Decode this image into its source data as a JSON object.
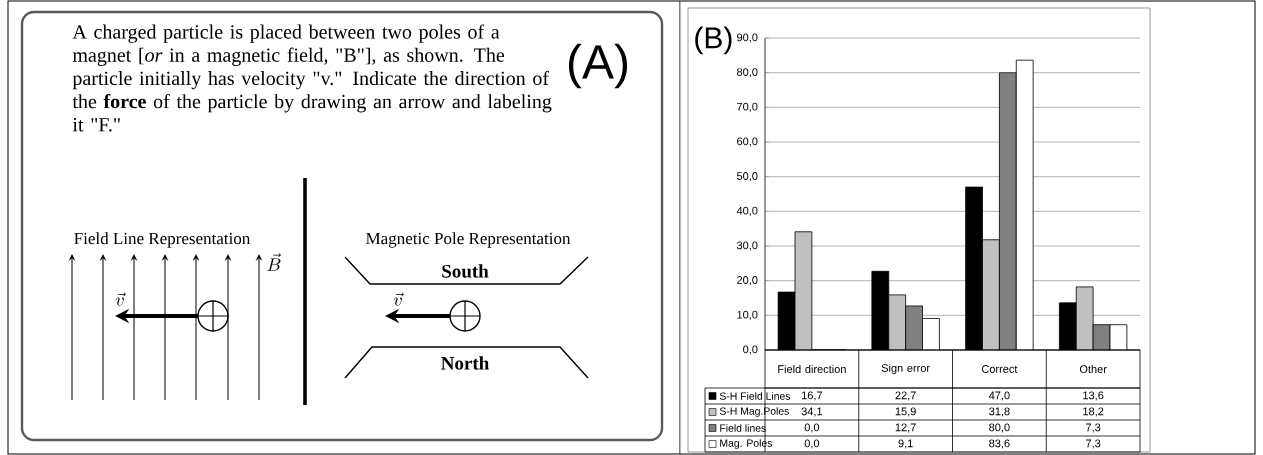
{
  "chart_data": [
    {
      "type": "other",
      "title": "(A)",
      "annotations": [
        "A charged particle is placed between two poles of a magnet [*or* in a magnetic field, \"B\"], as shown. The particle initially has velocity \"v.\" Indicate the direction of the **force** of the particle by drawing an arrow and labeling it \"F.\"",
        "Field Line Representation",
        "Magnetic Pole Representation",
        "**South**",
        "**North**",
        "\\vec{B}",
        "\\vec{v}",
        "\\vec{v}"
      ]
    },
    {
      "type": "bar",
      "title": "(B)",
      "categories": [
        "Field direction",
        "Sign error",
        "Correct",
        "Other"
      ],
      "series": [
        {
          "name": "S-H Field Lines",
          "color": "#000000",
          "values": [
            16.7,
            22.7,
            47.0,
            13.6
          ],
          "value_labels": [
            "16,7",
            "22,7",
            "47,0",
            "13,6"
          ]
        },
        {
          "name": "S-H Mag.Poles",
          "color": "#c0c0c0",
          "values": [
            34.1,
            15.9,
            31.8,
            18.2
          ],
          "value_labels": [
            "34,1",
            "15,9",
            "31,8",
            "18,2"
          ]
        },
        {
          "name": "Field lines",
          "color": "#808080",
          "values": [
            0.0,
            12.7,
            80.0,
            7.3
          ],
          "value_labels": [
            "0,0",
            "12,7",
            "80,0",
            "7,3"
          ]
        },
        {
          "name": "Mag. Poles",
          "color": "#ffffff",
          "values": [
            0.0,
            9.1,
            83.6,
            7.3
          ],
          "value_labels": [
            "0,0",
            "9,1",
            "83,6",
            "7,3"
          ]
        }
      ],
      "ylim": [
        0,
        90
      ],
      "yticks": [
        {
          "value": 0,
          "label": "0,0"
        },
        {
          "value": 10,
          "label": "10,0"
        },
        {
          "value": 20,
          "label": "20,0"
        },
        {
          "value": 30,
          "label": "30,0"
        },
        {
          "value": 40,
          "label": "40,0"
        },
        {
          "value": 50,
          "label": "50,0"
        },
        {
          "value": 60,
          "label": "60,0"
        },
        {
          "value": 70,
          "label": "70,0"
        },
        {
          "value": 80,
          "label": "80,0"
        },
        {
          "value": 90,
          "label": "90,0"
        }
      ],
      "grid": "y",
      "legend": "bottom"
    }
  ]
}
